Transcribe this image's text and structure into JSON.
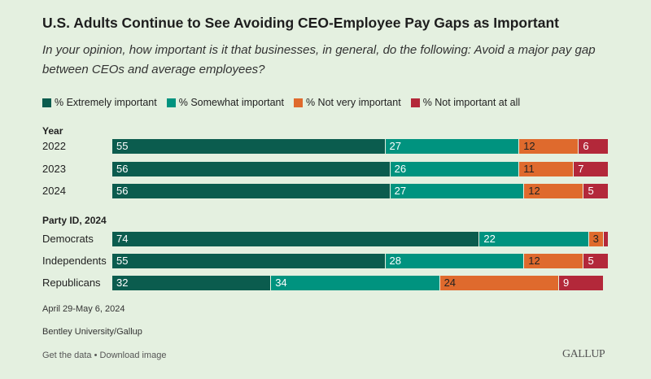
{
  "chart_data": {
    "type": "bar",
    "orientation": "horizontal-stacked",
    "title": "U.S. Adults Continue to See Avoiding CEO-Employee Pay Gaps as Important",
    "subtitle": "In your opinion, how important is it that businesses, in general, do the following: Avoid a major pay gap between CEOs and average employees?",
    "legend": [
      "% Extremely important",
      "% Somewhat important",
      "% Not very important",
      "% Not important at all"
    ],
    "colors": [
      "#0b5c4e",
      "#00937f",
      "#df6a2d",
      "#b3283a"
    ],
    "legend_placement": "top",
    "xlim": [
      0,
      100
    ],
    "groups": [
      {
        "label": "Year",
        "rows": [
          {
            "label": "2022",
            "values": [
              55,
              27,
              12,
              6
            ]
          },
          {
            "label": "2023",
            "values": [
              56,
              26,
              11,
              7
            ]
          },
          {
            "label": "2024",
            "values": [
              56,
              27,
              12,
              5
            ]
          }
        ]
      },
      {
        "label": "Party ID, 2024",
        "rows": [
          {
            "label": "Democrats",
            "values": [
              74,
              22,
              3,
              1
            ]
          },
          {
            "label": "Independents",
            "values": [
              55,
              28,
              12,
              5
            ]
          },
          {
            "label": "Republicans",
            "values": [
              32,
              34,
              24,
              9
            ]
          }
        ]
      }
    ]
  },
  "footer": {
    "date": "April 29-May 6, 2024",
    "source": "Bentley University/Gallup",
    "get_data": "Get the data",
    "sep": " • ",
    "download": "Download image",
    "logo": "GALLUP"
  }
}
